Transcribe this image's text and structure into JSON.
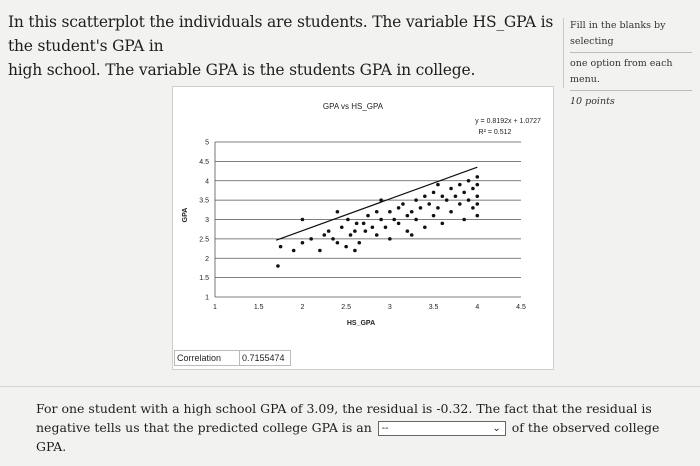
{
  "question": {
    "line1": "In this scatterplot the individuals are students. The variable HS_GPA is the student's GPA in",
    "line2": "high school. The variable GPA is the students GPA in college."
  },
  "instructions": {
    "text_line1": "Fill in the blanks by selecting",
    "text_line2": "one option from each menu.",
    "points": "10 points"
  },
  "chart": {
    "correlation_label": "Correlation",
    "correlation_value": "0.7155474"
  },
  "chart_data": {
    "type": "scatter",
    "title": "GPA vs HS_GPA",
    "xlabel": "HS_GPA",
    "ylabel": "GPA",
    "xlim": [
      1,
      4.5
    ],
    "ylim": [
      1,
      5
    ],
    "xticks": [
      "1",
      "1.5",
      "2",
      "2.5",
      "3",
      "3.5",
      "4",
      "4.5"
    ],
    "yticks": [
      "1",
      "1.5",
      "2",
      "2.5",
      "3",
      "3.5",
      "4",
      "4.5",
      "5"
    ],
    "grid": "horizontal",
    "equation": "y = 0.8192x + 1.0727",
    "r_squared": "R² = 0.512",
    "trendline": {
      "slope": 0.8192,
      "intercept": 1.0727,
      "x_range": [
        1.7,
        4.0
      ]
    },
    "points": [
      {
        "x": 1.72,
        "y": 1.8
      },
      {
        "x": 1.75,
        "y": 2.3
      },
      {
        "x": 1.9,
        "y": 2.2
      },
      {
        "x": 2.0,
        "y": 2.4
      },
      {
        "x": 2.1,
        "y": 2.5
      },
      {
        "x": 2.2,
        "y": 2.2
      },
      {
        "x": 2.25,
        "y": 2.6
      },
      {
        "x": 2.3,
        "y": 2.7
      },
      {
        "x": 2.35,
        "y": 2.5
      },
      {
        "x": 2.4,
        "y": 2.4
      },
      {
        "x": 2.45,
        "y": 2.8
      },
      {
        "x": 2.5,
        "y": 2.3
      },
      {
        "x": 2.52,
        "y": 3.0
      },
      {
        "x": 2.55,
        "y": 2.6
      },
      {
        "x": 2.6,
        "y": 2.7
      },
      {
        "x": 2.62,
        "y": 2.9
      },
      {
        "x": 2.65,
        "y": 2.4
      },
      {
        "x": 2.7,
        "y": 2.9
      },
      {
        "x": 2.72,
        "y": 2.7
      },
      {
        "x": 2.75,
        "y": 3.1
      },
      {
        "x": 2.8,
        "y": 2.8
      },
      {
        "x": 2.85,
        "y": 2.6
      },
      {
        "x": 2.85,
        "y": 3.2
      },
      {
        "x": 2.9,
        "y": 3.0
      },
      {
        "x": 2.95,
        "y": 2.8
      },
      {
        "x": 3.0,
        "y": 3.2
      },
      {
        "x": 3.0,
        "y": 2.5
      },
      {
        "x": 3.05,
        "y": 3.0
      },
      {
        "x": 3.1,
        "y": 2.9
      },
      {
        "x": 3.1,
        "y": 3.3
      },
      {
        "x": 3.15,
        "y": 3.4
      },
      {
        "x": 3.2,
        "y": 3.1
      },
      {
        "x": 3.2,
        "y": 2.7
      },
      {
        "x": 3.25,
        "y": 3.2
      },
      {
        "x": 3.3,
        "y": 3.5
      },
      {
        "x": 3.3,
        "y": 3.0
      },
      {
        "x": 3.35,
        "y": 3.3
      },
      {
        "x": 3.4,
        "y": 3.6
      },
      {
        "x": 3.4,
        "y": 2.8
      },
      {
        "x": 3.45,
        "y": 3.4
      },
      {
        "x": 3.5,
        "y": 3.1
      },
      {
        "x": 3.5,
        "y": 3.7
      },
      {
        "x": 3.55,
        "y": 3.3
      },
      {
        "x": 3.6,
        "y": 3.6
      },
      {
        "x": 3.6,
        "y": 2.9
      },
      {
        "x": 3.65,
        "y": 3.5
      },
      {
        "x": 3.7,
        "y": 3.8
      },
      {
        "x": 3.7,
        "y": 3.2
      },
      {
        "x": 3.75,
        "y": 3.6
      },
      {
        "x": 3.8,
        "y": 3.4
      },
      {
        "x": 3.8,
        "y": 3.9
      },
      {
        "x": 3.85,
        "y": 3.7
      },
      {
        "x": 3.9,
        "y": 3.5
      },
      {
        "x": 3.9,
        "y": 4.0
      },
      {
        "x": 3.95,
        "y": 3.3
      },
      {
        "x": 3.95,
        "y": 3.8
      },
      {
        "x": 4.0,
        "y": 3.6
      },
      {
        "x": 4.0,
        "y": 3.9
      },
      {
        "x": 4.0,
        "y": 3.1
      },
      {
        "x": 4.0,
        "y": 4.1
      },
      {
        "x": 2.0,
        "y": 3.0
      },
      {
        "x": 2.4,
        "y": 3.2
      },
      {
        "x": 2.6,
        "y": 2.2
      },
      {
        "x": 2.9,
        "y": 3.5
      },
      {
        "x": 3.25,
        "y": 2.6
      },
      {
        "x": 3.55,
        "y": 3.9
      },
      {
        "x": 3.85,
        "y": 3.0
      },
      {
        "x": 4.0,
        "y": 3.4
      }
    ]
  },
  "bottom": {
    "text_before": "For one student with a high school GPA of 3.09, the residual is -0.32. The fact that the residual is negative tells us that the predicted college GPA is an",
    "dropdown_value": "--",
    "text_after": "of the observed college GPA."
  },
  "icons": {
    "dropdown": "chevron-down-icon"
  }
}
